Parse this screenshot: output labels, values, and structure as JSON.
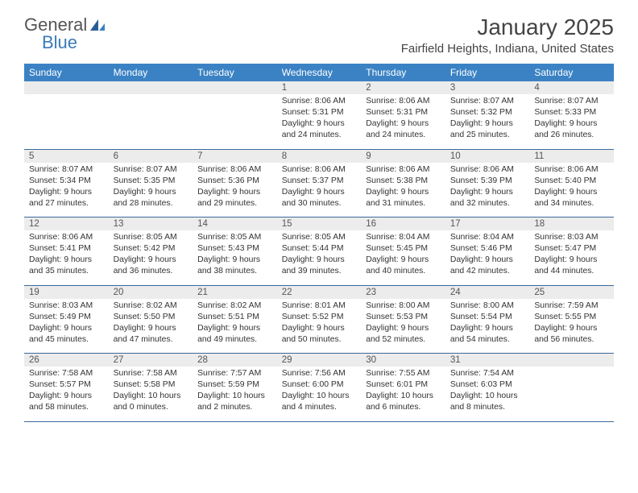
{
  "brand": {
    "part1": "General",
    "part2": "Blue"
  },
  "title": "January 2025",
  "location": "Fairfield Heights, Indiana, United States",
  "colors": {
    "header_bg": "#3b82c4",
    "header_text": "#ffffff",
    "daynum_bg": "#ececec",
    "row_border": "#3b6a9a",
    "brand_blue": "#3b7ab8"
  },
  "weekdays": [
    "Sunday",
    "Monday",
    "Tuesday",
    "Wednesday",
    "Thursday",
    "Friday",
    "Saturday"
  ],
  "weeks": [
    {
      "nums": [
        "",
        "",
        "",
        "1",
        "2",
        "3",
        "4"
      ],
      "details": [
        {
          "sunrise": "",
          "sunset": "",
          "daylight1": "",
          "daylight2": ""
        },
        {
          "sunrise": "",
          "sunset": "",
          "daylight1": "",
          "daylight2": ""
        },
        {
          "sunrise": "",
          "sunset": "",
          "daylight1": "",
          "daylight2": ""
        },
        {
          "sunrise": "Sunrise: 8:06 AM",
          "sunset": "Sunset: 5:31 PM",
          "daylight1": "Daylight: 9 hours",
          "daylight2": "and 24 minutes."
        },
        {
          "sunrise": "Sunrise: 8:06 AM",
          "sunset": "Sunset: 5:31 PM",
          "daylight1": "Daylight: 9 hours",
          "daylight2": "and 24 minutes."
        },
        {
          "sunrise": "Sunrise: 8:07 AM",
          "sunset": "Sunset: 5:32 PM",
          "daylight1": "Daylight: 9 hours",
          "daylight2": "and 25 minutes."
        },
        {
          "sunrise": "Sunrise: 8:07 AM",
          "sunset": "Sunset: 5:33 PM",
          "daylight1": "Daylight: 9 hours",
          "daylight2": "and 26 minutes."
        }
      ]
    },
    {
      "nums": [
        "5",
        "6",
        "7",
        "8",
        "9",
        "10",
        "11"
      ],
      "details": [
        {
          "sunrise": "Sunrise: 8:07 AM",
          "sunset": "Sunset: 5:34 PM",
          "daylight1": "Daylight: 9 hours",
          "daylight2": "and 27 minutes."
        },
        {
          "sunrise": "Sunrise: 8:07 AM",
          "sunset": "Sunset: 5:35 PM",
          "daylight1": "Daylight: 9 hours",
          "daylight2": "and 28 minutes."
        },
        {
          "sunrise": "Sunrise: 8:06 AM",
          "sunset": "Sunset: 5:36 PM",
          "daylight1": "Daylight: 9 hours",
          "daylight2": "and 29 minutes."
        },
        {
          "sunrise": "Sunrise: 8:06 AM",
          "sunset": "Sunset: 5:37 PM",
          "daylight1": "Daylight: 9 hours",
          "daylight2": "and 30 minutes."
        },
        {
          "sunrise": "Sunrise: 8:06 AM",
          "sunset": "Sunset: 5:38 PM",
          "daylight1": "Daylight: 9 hours",
          "daylight2": "and 31 minutes."
        },
        {
          "sunrise": "Sunrise: 8:06 AM",
          "sunset": "Sunset: 5:39 PM",
          "daylight1": "Daylight: 9 hours",
          "daylight2": "and 32 minutes."
        },
        {
          "sunrise": "Sunrise: 8:06 AM",
          "sunset": "Sunset: 5:40 PM",
          "daylight1": "Daylight: 9 hours",
          "daylight2": "and 34 minutes."
        }
      ]
    },
    {
      "nums": [
        "12",
        "13",
        "14",
        "15",
        "16",
        "17",
        "18"
      ],
      "details": [
        {
          "sunrise": "Sunrise: 8:06 AM",
          "sunset": "Sunset: 5:41 PM",
          "daylight1": "Daylight: 9 hours",
          "daylight2": "and 35 minutes."
        },
        {
          "sunrise": "Sunrise: 8:05 AM",
          "sunset": "Sunset: 5:42 PM",
          "daylight1": "Daylight: 9 hours",
          "daylight2": "and 36 minutes."
        },
        {
          "sunrise": "Sunrise: 8:05 AM",
          "sunset": "Sunset: 5:43 PM",
          "daylight1": "Daylight: 9 hours",
          "daylight2": "and 38 minutes."
        },
        {
          "sunrise": "Sunrise: 8:05 AM",
          "sunset": "Sunset: 5:44 PM",
          "daylight1": "Daylight: 9 hours",
          "daylight2": "and 39 minutes."
        },
        {
          "sunrise": "Sunrise: 8:04 AM",
          "sunset": "Sunset: 5:45 PM",
          "daylight1": "Daylight: 9 hours",
          "daylight2": "and 40 minutes."
        },
        {
          "sunrise": "Sunrise: 8:04 AM",
          "sunset": "Sunset: 5:46 PM",
          "daylight1": "Daylight: 9 hours",
          "daylight2": "and 42 minutes."
        },
        {
          "sunrise": "Sunrise: 8:03 AM",
          "sunset": "Sunset: 5:47 PM",
          "daylight1": "Daylight: 9 hours",
          "daylight2": "and 44 minutes."
        }
      ]
    },
    {
      "nums": [
        "19",
        "20",
        "21",
        "22",
        "23",
        "24",
        "25"
      ],
      "details": [
        {
          "sunrise": "Sunrise: 8:03 AM",
          "sunset": "Sunset: 5:49 PM",
          "daylight1": "Daylight: 9 hours",
          "daylight2": "and 45 minutes."
        },
        {
          "sunrise": "Sunrise: 8:02 AM",
          "sunset": "Sunset: 5:50 PM",
          "daylight1": "Daylight: 9 hours",
          "daylight2": "and 47 minutes."
        },
        {
          "sunrise": "Sunrise: 8:02 AM",
          "sunset": "Sunset: 5:51 PM",
          "daylight1": "Daylight: 9 hours",
          "daylight2": "and 49 minutes."
        },
        {
          "sunrise": "Sunrise: 8:01 AM",
          "sunset": "Sunset: 5:52 PM",
          "daylight1": "Daylight: 9 hours",
          "daylight2": "and 50 minutes."
        },
        {
          "sunrise": "Sunrise: 8:00 AM",
          "sunset": "Sunset: 5:53 PM",
          "daylight1": "Daylight: 9 hours",
          "daylight2": "and 52 minutes."
        },
        {
          "sunrise": "Sunrise: 8:00 AM",
          "sunset": "Sunset: 5:54 PM",
          "daylight1": "Daylight: 9 hours",
          "daylight2": "and 54 minutes."
        },
        {
          "sunrise": "Sunrise: 7:59 AM",
          "sunset": "Sunset: 5:55 PM",
          "daylight1": "Daylight: 9 hours",
          "daylight2": "and 56 minutes."
        }
      ]
    },
    {
      "nums": [
        "26",
        "27",
        "28",
        "29",
        "30",
        "31",
        ""
      ],
      "details": [
        {
          "sunrise": "Sunrise: 7:58 AM",
          "sunset": "Sunset: 5:57 PM",
          "daylight1": "Daylight: 9 hours",
          "daylight2": "and 58 minutes."
        },
        {
          "sunrise": "Sunrise: 7:58 AM",
          "sunset": "Sunset: 5:58 PM",
          "daylight1": "Daylight: 10 hours",
          "daylight2": "and 0 minutes."
        },
        {
          "sunrise": "Sunrise: 7:57 AM",
          "sunset": "Sunset: 5:59 PM",
          "daylight1": "Daylight: 10 hours",
          "daylight2": "and 2 minutes."
        },
        {
          "sunrise": "Sunrise: 7:56 AM",
          "sunset": "Sunset: 6:00 PM",
          "daylight1": "Daylight: 10 hours",
          "daylight2": "and 4 minutes."
        },
        {
          "sunrise": "Sunrise: 7:55 AM",
          "sunset": "Sunset: 6:01 PM",
          "daylight1": "Daylight: 10 hours",
          "daylight2": "and 6 minutes."
        },
        {
          "sunrise": "Sunrise: 7:54 AM",
          "sunset": "Sunset: 6:03 PM",
          "daylight1": "Daylight: 10 hours",
          "daylight2": "and 8 minutes."
        },
        {
          "sunrise": "",
          "sunset": "",
          "daylight1": "",
          "daylight2": ""
        }
      ]
    }
  ]
}
